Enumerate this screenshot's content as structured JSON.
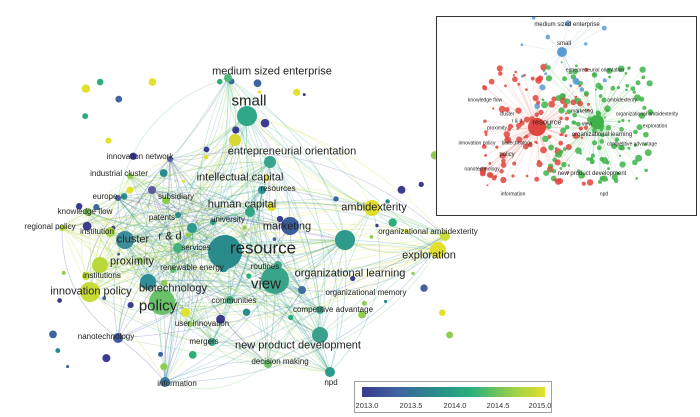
{
  "main_map": {
    "nodes": [
      {
        "label": "small",
        "color": "#2ea888",
        "size": "big"
      },
      {
        "label": "medium sized enterprise",
        "color": "#4fb87e",
        "size": "med"
      },
      {
        "label": "entrepreneurial orientation",
        "color": "#d6d731",
        "size": "med"
      },
      {
        "label": "innovation network",
        "color": "#5a5aa0",
        "size": "sm"
      },
      {
        "label": "industrial cluster",
        "color": "#8fcd4f",
        "size": "sm"
      },
      {
        "label": "intellectual capital",
        "color": "#3aa48c",
        "size": "med"
      },
      {
        "label": "resources",
        "color": "#2f8f8f",
        "size": "sm"
      },
      {
        "label": "europe",
        "color": "#4a5fa0",
        "size": "sm"
      },
      {
        "label": "subsidiary",
        "color": "#5b5b9c",
        "size": "sm"
      },
      {
        "label": "knowledge flow",
        "color": "#7fc455",
        "size": "sm"
      },
      {
        "label": "human capital",
        "color": "#34a685",
        "size": "med"
      },
      {
        "label": "ambidexterity",
        "color": "#e0dd2c",
        "size": "med"
      },
      {
        "label": "patents",
        "color": "#2a8b8c",
        "size": "sm"
      },
      {
        "label": "university",
        "color": "#2d9b8a",
        "size": "sm"
      },
      {
        "label": "regional policy",
        "color": "#b3d83e",
        "size": "sm"
      },
      {
        "label": "institution",
        "color": "#a7d444",
        "size": "sm"
      },
      {
        "label": "marketing",
        "color": "#3b5d9c",
        "size": "med"
      },
      {
        "label": "organizational ambidexterity",
        "color": "#c9dd37",
        "size": "sm"
      },
      {
        "label": "cluster",
        "color": "#3d8e9a",
        "size": "med"
      },
      {
        "label": "r & d",
        "color": "#2e9990",
        "size": "med"
      },
      {
        "label": "resource",
        "color": "#2a8b8c",
        "size": "huge"
      },
      {
        "label": "services",
        "color": "#43b27e",
        "size": "sm"
      },
      {
        "label": "exploration",
        "color": "#e2df2b",
        "size": "med"
      },
      {
        "label": "proximity",
        "color": "#b9d93b",
        "size": "med"
      },
      {
        "label": "renewable energy",
        "color": "#5fbe6d",
        "size": "sm"
      },
      {
        "label": "routines",
        "color": "#3ba88a",
        "size": "sm"
      },
      {
        "label": "organizational learning",
        "color": "#2d9a8b",
        "size": "med"
      },
      {
        "label": "institutions",
        "color": "#c3dc38",
        "size": "sm"
      },
      {
        "label": "biotechnology",
        "color": "#2f8d95",
        "size": "med"
      },
      {
        "label": "view",
        "color": "#3aa48a",
        "size": "big"
      },
      {
        "label": "innovation policy",
        "color": "#c7dc36",
        "size": "med"
      },
      {
        "label": "organizational memory",
        "color": "#3d6f9e",
        "size": "sm"
      },
      {
        "label": "policy",
        "color": "#69c26a",
        "size": "big"
      },
      {
        "label": "communities",
        "color": "#48b07f",
        "size": "sm"
      },
      {
        "label": "competitive advantage",
        "color": "#3ea58b",
        "size": "sm"
      },
      {
        "label": "user innovation",
        "color": "#8ecd52",
        "size": "sm"
      },
      {
        "label": "nanotechnology",
        "color": "#3d56a0",
        "size": "sm"
      },
      {
        "label": "mergers",
        "color": "#3da38b",
        "size": "sm"
      },
      {
        "label": "new product development",
        "color": "#3aa28c",
        "size": "med"
      },
      {
        "label": "decision making",
        "color": "#6dc366",
        "size": "sm"
      },
      {
        "label": "information",
        "color": "#3b77a5",
        "size": "sm"
      },
      {
        "label": "npd",
        "color": "#2e9a8c",
        "size": "sm"
      }
    ]
  },
  "inset_map": {
    "labels": [
      "medium sized enterprise",
      "small",
      "entrepreneurial orientation",
      "knowledge flow",
      "resource",
      "ambidexterity",
      "organizational learning",
      "innovation policy",
      "biotechnology",
      "policy",
      "new product development",
      "information",
      "npd",
      "nanotechnology",
      "proximity",
      "cluster",
      "r & d",
      "view",
      "marketing",
      "organizational ambidexterity",
      "exploration",
      "competitive advantage"
    ]
  },
  "legend": {
    "ticks": [
      "2013.0",
      "2013.5",
      "2014.0",
      "2014.5",
      "2015.0"
    ],
    "colors": [
      "#3b3b8f",
      "#3e65a0",
      "#2a8b8c",
      "#2cae7b",
      "#8fcd4f",
      "#e2e12a"
    ]
  }
}
